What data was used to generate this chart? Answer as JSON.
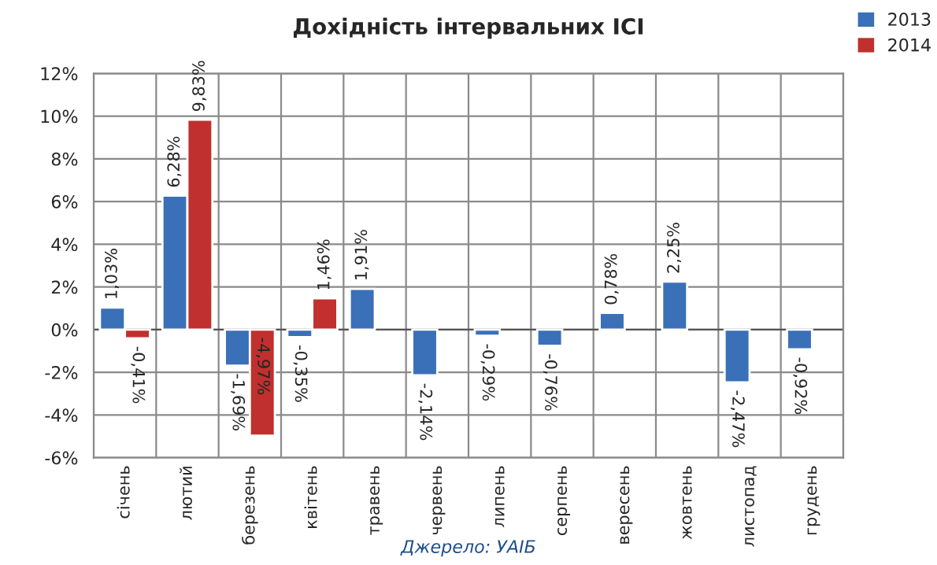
{
  "chart_data": {
    "type": "bar",
    "title": "Дохідність інтервальних ІСІ",
    "categories": [
      "січень",
      "лютий",
      "березень",
      "квітень",
      "травень",
      "червень",
      "липень",
      "серпень",
      "вересень",
      "жовтень",
      "листопад",
      "грудень"
    ],
    "series": [
      {
        "name": "2013",
        "color": "#3a70b8",
        "values": [
          1.03,
          6.28,
          -1.69,
          -0.35,
          1.91,
          -2.14,
          -0.29,
          -0.76,
          0.78,
          2.25,
          -2.47,
          -0.92
        ],
        "value_labels": [
          "1,03%",
          "6,28%",
          "-1,69%",
          "-0,35%",
          "1,91%",
          "-2,14%",
          "-0,29%",
          "-0,76%",
          "0,78%",
          "2,25%",
          "-2,47%",
          "-0,92%"
        ]
      },
      {
        "name": "2014",
        "color": "#c0302e",
        "values": [
          -0.41,
          9.83,
          -4.97,
          1.46,
          null,
          null,
          null,
          null,
          null,
          null,
          null,
          null
        ],
        "value_labels": [
          "-0,41%",
          "9,83%",
          "-4,97%",
          "1,46%",
          null,
          null,
          null,
          null,
          null,
          null,
          null,
          null
        ]
      }
    ],
    "ylim": [
      -6,
      12
    ],
    "yticks": [
      {
        "value": -6,
        "label": "-6%"
      },
      {
        "value": -4,
        "label": "-4%"
      },
      {
        "value": -2,
        "label": "-2%"
      },
      {
        "value": 0,
        "label": "0%"
      },
      {
        "value": 2,
        "label": "2%"
      },
      {
        "value": 4,
        "label": "4%"
      },
      {
        "value": 6,
        "label": "6%"
      },
      {
        "value": 8,
        "label": "8%"
      },
      {
        "value": 10,
        "label": "10%"
      },
      {
        "value": 12,
        "label": "12%"
      }
    ],
    "grid": true,
    "legend": "top right",
    "annotations": [
      "Джерело: УАІБ"
    ]
  }
}
